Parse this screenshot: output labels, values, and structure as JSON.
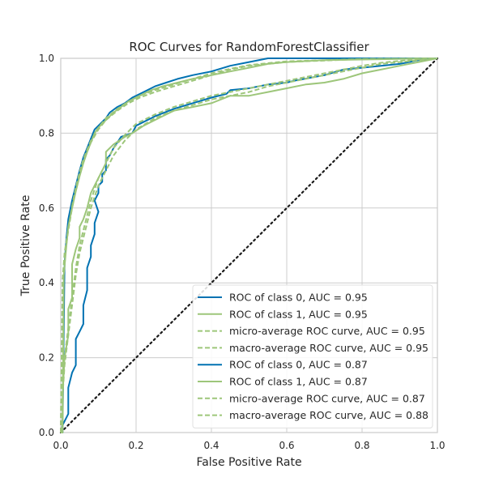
{
  "chart_data": {
    "type": "line",
    "title": "ROC Curves for RandomForestClassifier",
    "xlabel": "False Positive Rate",
    "ylabel": "True Positive Rate",
    "xlim": [
      0.0,
      1.0
    ],
    "ylim": [
      0.0,
      1.0
    ],
    "grid": true,
    "legend_position": "lower-right",
    "x_ticks": [
      "0.0",
      "0.2",
      "0.4",
      "0.6",
      "0.8",
      "1.0"
    ],
    "y_ticks": [
      "0.0",
      "0.2",
      "0.4",
      "0.6",
      "0.8",
      "1.0"
    ],
    "colors": {
      "blue": "#0072b2",
      "green": "#9dc67a",
      "chance": "#1a1a1a",
      "grid": "#cccccc",
      "axes": "#cccccc"
    },
    "series": [
      {
        "name": "ROC of class 0, AUC = 0.95",
        "style": "solid",
        "color": "blue",
        "points": [
          [
            0,
            0
          ],
          [
            0.005,
            0.02
          ],
          [
            0.01,
            0.45
          ],
          [
            0.015,
            0.52
          ],
          [
            0.02,
            0.57
          ],
          [
            0.03,
            0.62
          ],
          [
            0.04,
            0.66
          ],
          [
            0.05,
            0.7
          ],
          [
            0.06,
            0.735
          ],
          [
            0.07,
            0.76
          ],
          [
            0.08,
            0.785
          ],
          [
            0.09,
            0.81
          ],
          [
            0.1,
            0.82
          ],
          [
            0.12,
            0.84
          ],
          [
            0.13,
            0.855
          ],
          [
            0.15,
            0.87
          ],
          [
            0.17,
            0.88
          ],
          [
            0.19,
            0.895
          ],
          [
            0.22,
            0.91
          ],
          [
            0.25,
            0.925
          ],
          [
            0.28,
            0.935
          ],
          [
            0.31,
            0.945
          ],
          [
            0.35,
            0.955
          ],
          [
            0.4,
            0.965
          ],
          [
            0.45,
            0.98
          ],
          [
            0.5,
            0.99
          ],
          [
            0.55,
            1.0
          ],
          [
            1.0,
            1.0
          ]
        ]
      },
      {
        "name": "ROC of class 1, AUC = 0.95",
        "style": "solid",
        "color": "green",
        "points": [
          [
            0,
            0
          ],
          [
            0.005,
            0.02
          ],
          [
            0.008,
            0.42
          ],
          [
            0.015,
            0.5
          ],
          [
            0.02,
            0.55
          ],
          [
            0.03,
            0.6
          ],
          [
            0.04,
            0.645
          ],
          [
            0.05,
            0.685
          ],
          [
            0.06,
            0.72
          ],
          [
            0.07,
            0.75
          ],
          [
            0.08,
            0.775
          ],
          [
            0.09,
            0.8
          ],
          [
            0.1,
            0.815
          ],
          [
            0.12,
            0.835
          ],
          [
            0.14,
            0.855
          ],
          [
            0.16,
            0.87
          ],
          [
            0.18,
            0.885
          ],
          [
            0.21,
            0.9
          ],
          [
            0.24,
            0.915
          ],
          [
            0.27,
            0.925
          ],
          [
            0.31,
            0.935
          ],
          [
            0.35,
            0.945
          ],
          [
            0.4,
            0.955
          ],
          [
            0.45,
            0.965
          ],
          [
            0.5,
            0.975
          ],
          [
            0.55,
            0.985
          ],
          [
            0.6,
            0.99
          ],
          [
            0.7,
            0.995
          ],
          [
            1.0,
            1.0
          ]
        ]
      },
      {
        "name": "micro-average ROC curve, AUC = 0.95",
        "style": "dashed",
        "color": "green",
        "points": [
          [
            0,
            0
          ],
          [
            0.005,
            0.4
          ],
          [
            0.01,
            0.47
          ],
          [
            0.02,
            0.54
          ],
          [
            0.03,
            0.6
          ],
          [
            0.04,
            0.65
          ],
          [
            0.05,
            0.69
          ],
          [
            0.06,
            0.725
          ],
          [
            0.08,
            0.775
          ],
          [
            0.1,
            0.81
          ],
          [
            0.12,
            0.835
          ],
          [
            0.15,
            0.86
          ],
          [
            0.18,
            0.88
          ],
          [
            0.21,
            0.895
          ],
          [
            0.25,
            0.91
          ],
          [
            0.3,
            0.925
          ],
          [
            0.35,
            0.94
          ],
          [
            0.4,
            0.955
          ],
          [
            0.45,
            0.97
          ],
          [
            0.5,
            0.98
          ],
          [
            0.6,
            0.99
          ],
          [
            0.8,
            0.998
          ],
          [
            1.0,
            1.0
          ]
        ]
      },
      {
        "name": "macro-average ROC curve, AUC = 0.95",
        "style": "dashed",
        "color": "green",
        "points": [
          [
            0,
            0
          ],
          [
            0.005,
            0.41
          ],
          [
            0.01,
            0.48
          ],
          [
            0.02,
            0.545
          ],
          [
            0.03,
            0.605
          ],
          [
            0.04,
            0.655
          ],
          [
            0.05,
            0.695
          ],
          [
            0.06,
            0.73
          ],
          [
            0.08,
            0.78
          ],
          [
            0.1,
            0.815
          ],
          [
            0.12,
            0.84
          ],
          [
            0.15,
            0.865
          ],
          [
            0.18,
            0.885
          ],
          [
            0.21,
            0.9
          ],
          [
            0.25,
            0.915
          ],
          [
            0.3,
            0.93
          ],
          [
            0.35,
            0.945
          ],
          [
            0.4,
            0.96
          ],
          [
            0.45,
            0.972
          ],
          [
            0.5,
            0.982
          ],
          [
            0.6,
            0.992
          ],
          [
            0.8,
            0.998
          ],
          [
            1.0,
            1.0
          ]
        ]
      },
      {
        "name": "ROC of class 0, AUC = 0.87",
        "style": "solid",
        "color": "blue",
        "points": [
          [
            0,
            0
          ],
          [
            0.005,
            0.0
          ],
          [
            0.005,
            0.02
          ],
          [
            0.02,
            0.05
          ],
          [
            0.02,
            0.12
          ],
          [
            0.03,
            0.16
          ],
          [
            0.04,
            0.18
          ],
          [
            0.04,
            0.25
          ],
          [
            0.05,
            0.27
          ],
          [
            0.06,
            0.29
          ],
          [
            0.06,
            0.34
          ],
          [
            0.07,
            0.38
          ],
          [
            0.07,
            0.44
          ],
          [
            0.08,
            0.47
          ],
          [
            0.08,
            0.5
          ],
          [
            0.09,
            0.53
          ],
          [
            0.09,
            0.56
          ],
          [
            0.1,
            0.59
          ],
          [
            0.09,
            0.62
          ],
          [
            0.1,
            0.64
          ],
          [
            0.1,
            0.66
          ],
          [
            0.11,
            0.67
          ],
          [
            0.11,
            0.69
          ],
          [
            0.12,
            0.7
          ],
          [
            0.12,
            0.73
          ],
          [
            0.13,
            0.74
          ],
          [
            0.14,
            0.76
          ],
          [
            0.16,
            0.79
          ],
          [
            0.19,
            0.8
          ],
          [
            0.2,
            0.82
          ],
          [
            0.25,
            0.845
          ],
          [
            0.3,
            0.865
          ],
          [
            0.35,
            0.88
          ],
          [
            0.4,
            0.895
          ],
          [
            0.44,
            0.905
          ],
          [
            0.45,
            0.915
          ],
          [
            0.5,
            0.92
          ],
          [
            0.55,
            0.93
          ],
          [
            0.6,
            0.935
          ],
          [
            0.62,
            0.94
          ],
          [
            0.7,
            0.955
          ],
          [
            0.75,
            0.97
          ],
          [
            0.8,
            0.975
          ],
          [
            0.85,
            0.98
          ],
          [
            0.9,
            0.985
          ],
          [
            0.95,
            0.995
          ],
          [
            1.0,
            1.0
          ]
        ]
      },
      {
        "name": "ROC of class 1, AUC = 0.87",
        "style": "solid",
        "color": "green",
        "points": [
          [
            0,
            0
          ],
          [
            0.005,
            0.0
          ],
          [
            0.005,
            0.1
          ],
          [
            0.01,
            0.2
          ],
          [
            0.02,
            0.26
          ],
          [
            0.02,
            0.33
          ],
          [
            0.03,
            0.36
          ],
          [
            0.03,
            0.45
          ],
          [
            0.04,
            0.49
          ],
          [
            0.05,
            0.52
          ],
          [
            0.05,
            0.55
          ],
          [
            0.06,
            0.57
          ],
          [
            0.07,
            0.6
          ],
          [
            0.08,
            0.64
          ],
          [
            0.09,
            0.66
          ],
          [
            0.1,
            0.68
          ],
          [
            0.11,
            0.7
          ],
          [
            0.12,
            0.72
          ],
          [
            0.12,
            0.75
          ],
          [
            0.14,
            0.77
          ],
          [
            0.17,
            0.79
          ],
          [
            0.19,
            0.8
          ],
          [
            0.22,
            0.82
          ],
          [
            0.26,
            0.84
          ],
          [
            0.3,
            0.86
          ],
          [
            0.35,
            0.87
          ],
          [
            0.4,
            0.88
          ],
          [
            0.45,
            0.9
          ],
          [
            0.5,
            0.9
          ],
          [
            0.55,
            0.91
          ],
          [
            0.6,
            0.92
          ],
          [
            0.65,
            0.93
          ],
          [
            0.7,
            0.935
          ],
          [
            0.75,
            0.945
          ],
          [
            0.8,
            0.96
          ],
          [
            0.85,
            0.97
          ],
          [
            0.9,
            0.98
          ],
          [
            0.95,
            0.99
          ],
          [
            1.0,
            1.0
          ]
        ]
      },
      {
        "name": "micro-average ROC curve, AUC = 0.87",
        "style": "dashed",
        "color": "green",
        "points": [
          [
            0,
            0
          ],
          [
            0.005,
            0.1
          ],
          [
            0.01,
            0.18
          ],
          [
            0.02,
            0.26
          ],
          [
            0.03,
            0.34
          ],
          [
            0.04,
            0.42
          ],
          [
            0.05,
            0.48
          ],
          [
            0.06,
            0.52
          ],
          [
            0.07,
            0.56
          ],
          [
            0.08,
            0.6
          ],
          [
            0.09,
            0.63
          ],
          [
            0.1,
            0.66
          ],
          [
            0.12,
            0.7
          ],
          [
            0.14,
            0.74
          ],
          [
            0.17,
            0.78
          ],
          [
            0.2,
            0.81
          ],
          [
            0.25,
            0.84
          ],
          [
            0.3,
            0.86
          ],
          [
            0.35,
            0.875
          ],
          [
            0.4,
            0.89
          ],
          [
            0.45,
            0.9
          ],
          [
            0.5,
            0.91
          ],
          [
            0.55,
            0.925
          ],
          [
            0.6,
            0.935
          ],
          [
            0.65,
            0.945
          ],
          [
            0.7,
            0.955
          ],
          [
            0.75,
            0.965
          ],
          [
            0.8,
            0.975
          ],
          [
            0.85,
            0.985
          ],
          [
            0.9,
            0.99
          ],
          [
            0.95,
            0.995
          ],
          [
            1.0,
            1.0
          ]
        ]
      },
      {
        "name": "macro-average ROC curve, AUC = 0.88",
        "style": "dashed",
        "color": "green",
        "points": [
          [
            0,
            0
          ],
          [
            0.005,
            0.11
          ],
          [
            0.01,
            0.2
          ],
          [
            0.02,
            0.28
          ],
          [
            0.03,
            0.36
          ],
          [
            0.04,
            0.44
          ],
          [
            0.05,
            0.5
          ],
          [
            0.06,
            0.54
          ],
          [
            0.07,
            0.58
          ],
          [
            0.08,
            0.62
          ],
          [
            0.09,
            0.65
          ],
          [
            0.1,
            0.68
          ],
          [
            0.12,
            0.72
          ],
          [
            0.14,
            0.76
          ],
          [
            0.17,
            0.795
          ],
          [
            0.2,
            0.825
          ],
          [
            0.25,
            0.85
          ],
          [
            0.3,
            0.87
          ],
          [
            0.35,
            0.885
          ],
          [
            0.4,
            0.9
          ],
          [
            0.45,
            0.91
          ],
          [
            0.5,
            0.92
          ],
          [
            0.55,
            0.93
          ],
          [
            0.6,
            0.94
          ],
          [
            0.65,
            0.95
          ],
          [
            0.7,
            0.96
          ],
          [
            0.75,
            0.97
          ],
          [
            0.8,
            0.98
          ],
          [
            0.85,
            0.988
          ],
          [
            0.9,
            0.993
          ],
          [
            0.95,
            0.997
          ],
          [
            1.0,
            1.0
          ]
        ]
      }
    ],
    "chance_line": [
      [
        0,
        0
      ],
      [
        1,
        1
      ]
    ]
  }
}
